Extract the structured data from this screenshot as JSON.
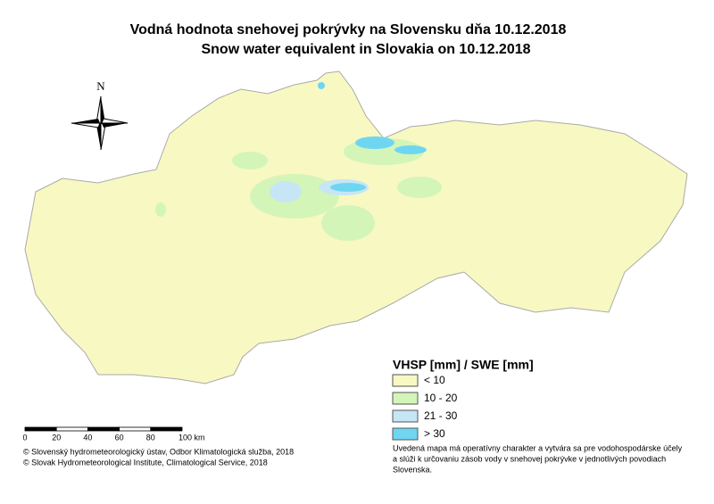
{
  "title": [
    "Vodná hodnota snehovej pokrývky na Slovensku dňa 10.12.2018",
    "Snow water equivalent in Slovakia on 10.12.2018"
  ],
  "north": "N",
  "legend": {
    "title": "VHSP [mm] / SWE [mm]",
    "items": [
      {
        "label": "< 10",
        "color": "#f8f8c2"
      },
      {
        "label": "10 - 20",
        "color": "#d4f5b8"
      },
      {
        "label": "21 - 30",
        "color": "#c6e6f5"
      },
      {
        "label": "> 30",
        "color": "#6fd6f2"
      }
    ]
  },
  "scale": {
    "labels": [
      "0",
      "20",
      "40",
      "60",
      "80",
      "100 km"
    ]
  },
  "credits": [
    "© Slovenský hydrometeorologický ústav, Odbor Klimatologická služba, 2018",
    "© Slovak Hydrometeorological Institute, Climatological Service, 2018"
  ],
  "note": [
    "Uvedená mapa má operatívny charakter a vytvára sa pre vodohospodárske účely",
    "a slúži k určovaniu zásob vody v snehovej pokrývke v jednotlivých povodiach",
    "Slovenska."
  ]
}
